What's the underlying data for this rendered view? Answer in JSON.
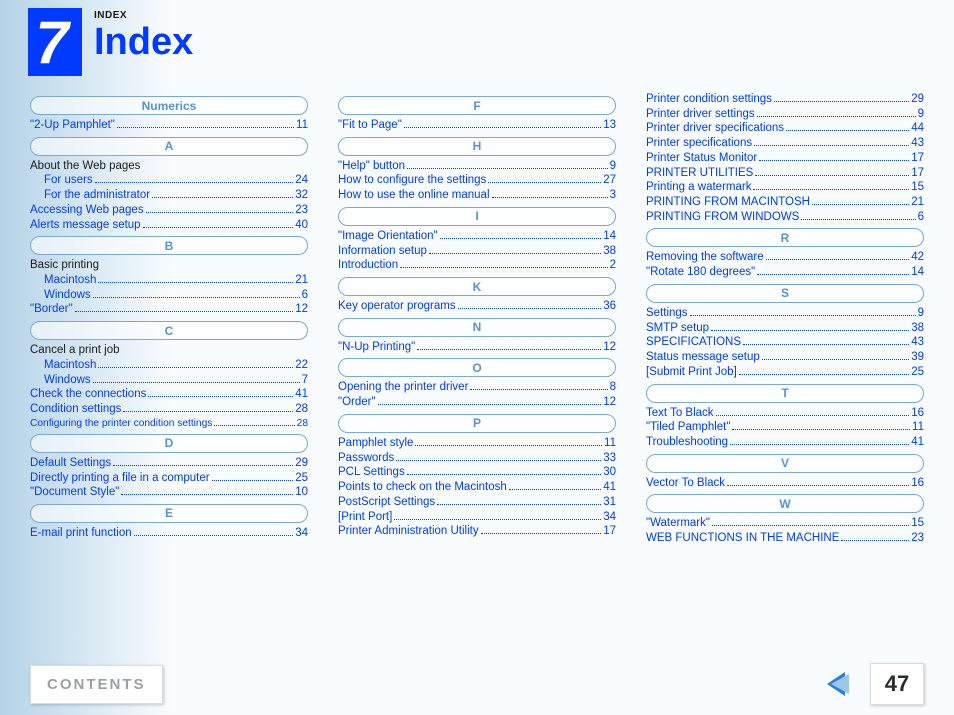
{
  "header": {
    "number": "7",
    "kicker": "INDEX",
    "title": "Index"
  },
  "columns": [
    {
      "sections": [
        {
          "label": "Numerics",
          "entries": [
            {
              "t": "\"2-Up Pamphlet\"",
              "p": "11",
              "link": true
            }
          ]
        },
        {
          "label": "A",
          "entries": [
            {
              "t": "About the Web pages",
              "heading": true
            },
            {
              "t": "For users",
              "p": "24",
              "sub": true,
              "link": true
            },
            {
              "t": "For the administrator",
              "p": "32",
              "sub": true,
              "link": true
            },
            {
              "t": "Accessing Web pages",
              "p": "23",
              "link": true
            },
            {
              "t": "Alerts message setup",
              "p": "40",
              "link": true
            }
          ]
        },
        {
          "label": "B",
          "entries": [
            {
              "t": "Basic printing",
              "heading": true
            },
            {
              "t": "Macintosh",
              "p": "21",
              "sub": true,
              "link": true
            },
            {
              "t": "Windows",
              "p": "6",
              "sub": true,
              "link": true
            },
            {
              "t": "\"Border\"",
              "p": "12",
              "link": true
            }
          ]
        },
        {
          "label": "C",
          "entries": [
            {
              "t": "Cancel a print job",
              "heading": true
            },
            {
              "t": "Macintosh",
              "p": "22",
              "sub": true,
              "link": true
            },
            {
              "t": "Windows",
              "p": "7",
              "sub": true,
              "link": true
            },
            {
              "t": "Check the connections",
              "p": "41",
              "link": true
            },
            {
              "t": "Condition settings",
              "p": "28",
              "link": true
            },
            {
              "t": "Configuring the printer condition settings",
              "p": "28",
              "link": true,
              "small": true
            }
          ]
        },
        {
          "label": "D",
          "entries": [
            {
              "t": "Default Settings",
              "p": "29",
              "link": true
            },
            {
              "t": "Directly printing a file in a computer",
              "p": "25",
              "link": true
            },
            {
              "t": "\"Document Style\"",
              "p": "10",
              "link": true
            }
          ]
        },
        {
          "label": "E",
          "entries": [
            {
              "t": "E-mail print function",
              "p": "34",
              "link": true
            }
          ]
        }
      ]
    },
    {
      "sections": [
        {
          "label": "F",
          "entries": [
            {
              "t": "\"Fit to Page\"",
              "p": "13",
              "link": true
            }
          ]
        },
        {
          "label": "H",
          "entries": [
            {
              "t": "\"Help\" button",
              "p": "9",
              "link": true
            },
            {
              "t": "How to configure the settings",
              "p": "27",
              "link": true
            },
            {
              "t": "How to use the online manual",
              "p": "3",
              "link": true
            }
          ]
        },
        {
          "label": "I",
          "entries": [
            {
              "t": "\"Image Orientation\"",
              "p": "14",
              "link": true
            },
            {
              "t": "Information setup",
              "p": "38",
              "link": true
            },
            {
              "t": "Introduction",
              "p": "2",
              "link": true
            }
          ]
        },
        {
          "label": "K",
          "entries": [
            {
              "t": "Key operator programs",
              "p": "36",
              "link": true
            }
          ]
        },
        {
          "label": "N",
          "entries": [
            {
              "t": "\"N-Up Printing\"",
              "p": "12",
              "link": true
            }
          ]
        },
        {
          "label": "O",
          "entries": [
            {
              "t": "Opening the printer driver",
              "p": "8",
              "link": true
            },
            {
              "t": "\"Order\"",
              "p": "12",
              "link": true
            }
          ]
        },
        {
          "label": "P",
          "entries": [
            {
              "t": "Pamphlet style",
              "p": "11",
              "link": true
            },
            {
              "t": "Passwords",
              "p": "33",
              "link": true
            },
            {
              "t": "PCL Settings",
              "p": "30",
              "link": true
            },
            {
              "t": "Points to check on the Macintosh",
              "p": "41",
              "link": true
            },
            {
              "t": "PostScript Settings",
              "p": "31",
              "link": true
            },
            {
              "t": "[Print Port]",
              "p": "34",
              "link": true
            },
            {
              "t": "Printer Administration Utility",
              "p": "17",
              "link": true
            }
          ]
        }
      ]
    },
    {
      "sections": [
        {
          "label": null,
          "entries": [
            {
              "t": "Printer condition settings",
              "p": "29",
              "link": true
            },
            {
              "t": "Printer driver settings",
              "p": "9",
              "link": true
            },
            {
              "t": "Printer driver specifications",
              "p": "44",
              "link": true
            },
            {
              "t": "Printer specifications",
              "p": "43",
              "link": true
            },
            {
              "t": "Printer Status Monitor",
              "p": "17",
              "link": true
            },
            {
              "t": "PRINTER UTILITIES",
              "p": "17",
              "link": true
            },
            {
              "t": "Printing a watermark",
              "p": "15",
              "link": true
            },
            {
              "t": "PRINTING FROM MACINTOSH",
              "p": "21",
              "link": true
            },
            {
              "t": "PRINTING FROM WINDOWS",
              "p": "6",
              "link": true
            }
          ]
        },
        {
          "label": "R",
          "entries": [
            {
              "t": "Removing the software",
              "p": "42",
              "link": true
            },
            {
              "t": "\"Rotate 180 degrees\"",
              "p": "14",
              "link": true
            }
          ]
        },
        {
          "label": "S",
          "entries": [
            {
              "t": "Settings",
              "p": "9",
              "link": true
            },
            {
              "t": "SMTP setup",
              "p": "38",
              "link": true
            },
            {
              "t": "SPECIFICATIONS",
              "p": "43",
              "link": true
            },
            {
              "t": "Status message setup",
              "p": "39",
              "link": true
            },
            {
              "t": "[Submit Print Job]",
              "p": "25",
              "link": true
            }
          ]
        },
        {
          "label": "T",
          "entries": [
            {
              "t": "Text To Black",
              "p": "16",
              "link": true
            },
            {
              "t": "\"Tiled Pamphlet\"",
              "p": "11",
              "link": true
            },
            {
              "t": "Troubleshooting",
              "p": "41",
              "link": true
            }
          ]
        },
        {
          "label": "V",
          "entries": [
            {
              "t": "Vector To Black",
              "p": "16",
              "link": true
            }
          ]
        },
        {
          "label": "W",
          "entries": [
            {
              "t": "\"Watermark\"",
              "p": "15",
              "link": true
            },
            {
              "t": "WEB FUNCTIONS IN THE MACHINE",
              "p": "23",
              "link": true
            }
          ]
        }
      ]
    }
  ],
  "footer": {
    "contents": "CONTENTS",
    "page": "47"
  }
}
